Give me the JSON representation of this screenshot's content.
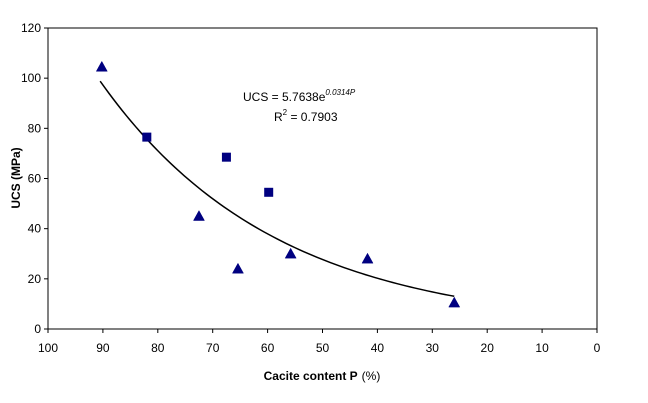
{
  "chart_data": {
    "type": "scatter",
    "xlabel": "Cacite content P",
    "xlabel_unit": "(%)",
    "ylabel": "UCS (MPa)",
    "xlim": [
      100,
      0
    ],
    "ylim": [
      0,
      120
    ],
    "x_reversed": true,
    "x_ticks": [
      "100",
      "90",
      "80",
      "70",
      "60",
      "50",
      "40",
      "30",
      "20",
      "10",
      "0"
    ],
    "y_ticks": [
      "0",
      "20",
      "40",
      "60",
      "80",
      "100",
      "120"
    ],
    "grid": false,
    "legend": "none",
    "series": [
      {
        "marker": "triangle",
        "color": "#000080",
        "points": [
          {
            "x": 90.2,
            "y": 104.5
          },
          {
            "x": 72.5,
            "y": 45.0
          },
          {
            "x": 65.4,
            "y": 24.0
          },
          {
            "x": 55.8,
            "y": 30.0
          },
          {
            "x": 41.8,
            "y": 28.0
          },
          {
            "x": 26.0,
            "y": 10.5
          }
        ]
      },
      {
        "marker": "square",
        "color": "#000080",
        "points": [
          {
            "x": 82.0,
            "y": 76.5
          },
          {
            "x": 67.5,
            "y": 68.5
          },
          {
            "x": 59.8,
            "y": 54.5
          }
        ]
      }
    ],
    "trendline": {
      "type": "exponential",
      "a": 5.7638,
      "b": 0.0314,
      "x_range": [
        90.5,
        26.0
      ],
      "color": "#000000"
    },
    "annotation": {
      "equation_prefix": "UCS = 5.7638e",
      "equation_exponent": "0.0314P",
      "r2_prefix": "R",
      "r2_exponent": "2",
      "r2_value": " = 0.7903"
    }
  }
}
